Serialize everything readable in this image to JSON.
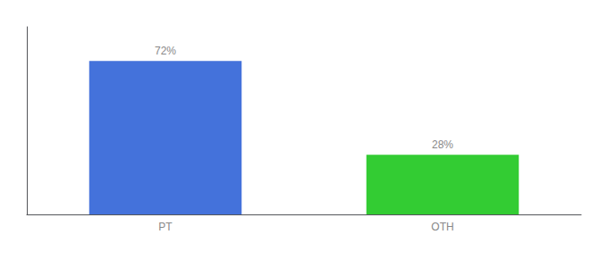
{
  "chart_data": {
    "type": "bar",
    "categories": [
      "PT",
      "OTH"
    ],
    "values": [
      72,
      28
    ],
    "colors": [
      "#4472db",
      "#33cc33"
    ],
    "data_labels": true,
    "value_labels": [
      "72%",
      "28%"
    ],
    "ylim": [
      0,
      88
    ],
    "yticks": [],
    "tick_labels": "x",
    "grid": false
  }
}
